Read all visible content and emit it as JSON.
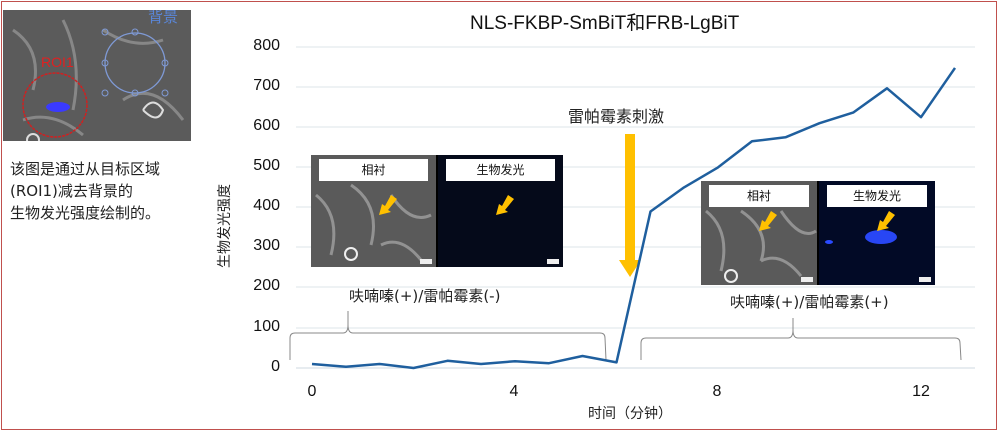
{
  "note": {
    "lines": [
      "该图是通过从目标区域",
      "(ROI1)减去背景的",
      "生物发光强度绘制的。"
    ]
  },
  "roi_image": {
    "roi_label": "ROI1",
    "background_label": "背景",
    "roi_color": "#e02020",
    "background_color": "#6a8fd8",
    "signal_color": "#3a3aff"
  },
  "annotations": {
    "stimulus": "雷帕霉素刺激",
    "before": "呋喃嗪(+)/雷帕霉素(-)",
    "after": "呋喃嗪(+)/雷帕霉素(+)",
    "arrow_color": "#ffc000"
  },
  "micrographs": {
    "before": {
      "phase_label": "相衬",
      "lum_label": "生物发光"
    },
    "after": {
      "phase_label": "相衬",
      "lum_label": "生物发光"
    }
  },
  "colors": {
    "line": "#1f5f9e",
    "grid": "#d9e1e8",
    "frame": "#c0504d"
  },
  "chart_data": {
    "type": "line",
    "title": "NLS-FKBP-SmBiT和FRB-LgBiT",
    "xlabel": "时间（分钟）",
    "ylabel": "生物发光强度",
    "xlim": [
      0,
      13
    ],
    "ylim": [
      0,
      800
    ],
    "xticks": [
      "0",
      "4",
      "8",
      "12"
    ],
    "yticks": [
      "0",
      "100",
      "200",
      "300",
      "400",
      "500",
      "600",
      "700",
      "800"
    ],
    "grid": true,
    "legend": null,
    "series": [
      {
        "name": "生物发光强度",
        "x": [
          0,
          0.67,
          1.33,
          2,
          2.67,
          3.33,
          4,
          4.67,
          5.33,
          6,
          6.67,
          7.33,
          8,
          8.67,
          9.33,
          10,
          10.67,
          11.33,
          12,
          12.67
        ],
        "values": [
          10,
          3,
          10,
          0,
          18,
          10,
          17,
          12,
          30,
          14,
          390,
          450,
          500,
          565,
          575,
          610,
          637,
          697,
          625,
          748
        ]
      }
    ],
    "annotations": [
      {
        "text": "雷帕霉素刺激",
        "x": 6.3,
        "type": "arrow-down"
      },
      {
        "text": "呋喃嗪(+)/雷帕霉素(-)",
        "x_range": [
          0,
          5.8
        ],
        "type": "brace"
      },
      {
        "text": "呋喃嗪(+)/雷帕霉素(+)",
        "x_range": [
          6.6,
          12.8
        ],
        "type": "brace"
      }
    ]
  }
}
